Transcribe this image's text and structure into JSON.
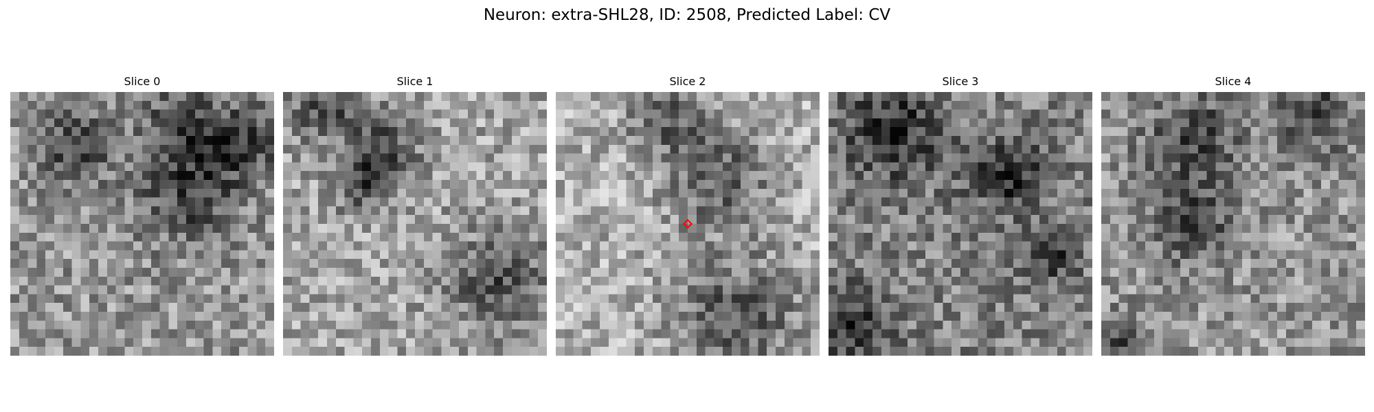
{
  "figure": {
    "title": "Neuron: extra-SHL28, ID: 2508, Predicted Label: CV"
  },
  "panels": [
    {
      "title": "Slice 0"
    },
    {
      "title": "Slice 1"
    },
    {
      "title": "Slice 2"
    },
    {
      "title": "Slice 3"
    },
    {
      "title": "Slice 4"
    }
  ],
  "marker": {
    "panel_index": 2,
    "shape": "diamond",
    "color": "#ff0000"
  },
  "colormap": "gray"
}
